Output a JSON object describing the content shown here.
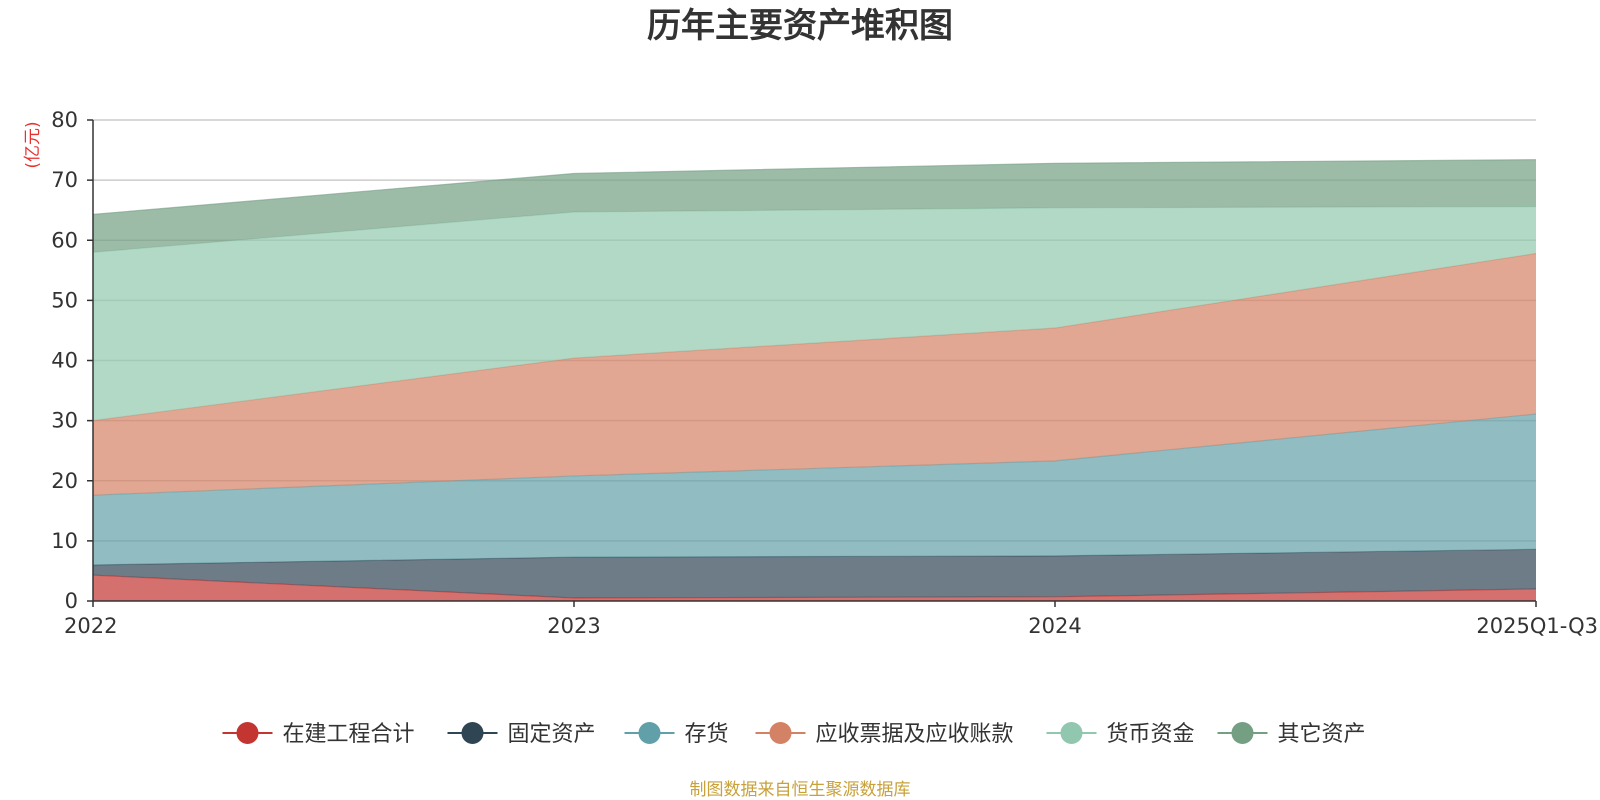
{
  "chart_data": {
    "type": "area",
    "stacked": true,
    "title": "历年主要资产堆积图",
    "ylabel": "(亿元)",
    "ylim": [
      0,
      80
    ],
    "yticks": [
      0,
      10,
      20,
      30,
      40,
      50,
      60,
      70,
      80
    ],
    "categories": [
      "2022",
      "2023",
      "2024",
      "2025Q1-Q3"
    ],
    "series": [
      {
        "name": "在建工程合计",
        "color": "#c23531",
        "values": [
          4.3,
          0.5,
          0.7,
          2.0
        ]
      },
      {
        "name": "固定资产",
        "color": "#2f4554",
        "values": [
          1.7,
          6.8,
          6.8,
          6.6
        ]
      },
      {
        "name": "存货",
        "color": "#61a0a8",
        "values": [
          11.6,
          13.5,
          15.8,
          22.5
        ]
      },
      {
        "name": "应收票据及应收账款",
        "color": "#d48265",
        "values": [
          12.4,
          19.6,
          22.1,
          26.7
        ]
      },
      {
        "name": "货币资金",
        "color": "#91c7ae",
        "values": [
          28.0,
          24.3,
          20.0,
          7.8
        ]
      },
      {
        "name": "其它资产",
        "color": "#749f83",
        "values": [
          6.3,
          6.4,
          7.4,
          7.8
        ]
      }
    ],
    "legend_position": "bottom",
    "grid": true,
    "source": "制图数据来自恒生聚源数据库",
    "source_color": "#c8a13a",
    "unit_color": "#e8312f"
  }
}
